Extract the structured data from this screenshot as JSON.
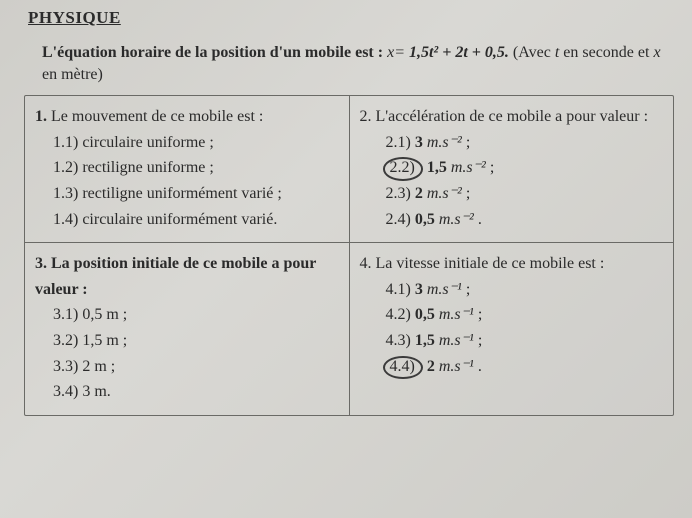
{
  "header": {
    "title": "PHYSIQUE"
  },
  "intro": {
    "lead": "L'équation horaire de la position d'un mobile est :",
    "eq_lhs": "x",
    "eq_rhs": "1,5t² + 2t + 0,5.",
    "note_open": "(Avec ",
    "note_var1": "t",
    "note_mid": " en seconde et ",
    "note_var2": "x",
    "note_end": " en mètre)"
  },
  "q1": {
    "num": "1.",
    "text": "Le mouvement de ce mobile est :",
    "opts": [
      {
        "n": "1.1)",
        "t": "circulaire uniforme ;"
      },
      {
        "n": "1.2)",
        "t": "rectiligne uniforme ;"
      },
      {
        "n": "1.3)",
        "t": "rectiligne uniformément varié ;"
      },
      {
        "n": "1.4)",
        "t": "circulaire uniformément varié."
      }
    ]
  },
  "q2": {
    "num": "2.",
    "text": "L'accélération de ce mobile a pour valeur :",
    "opts": [
      {
        "n": "2.1)",
        "v": "3",
        "u": "m.s⁻²",
        "p": ";"
      },
      {
        "n": "2.2)",
        "v": "1,5",
        "u": "m.s⁻²",
        "p": ";",
        "circled": true
      },
      {
        "n": "2.3)",
        "v": "2",
        "u": "m.s⁻²",
        "p": ";"
      },
      {
        "n": "2.4)",
        "v": "0,5",
        "u": "m.s⁻²",
        "p": "."
      }
    ]
  },
  "q3": {
    "num": "3.",
    "text": "La position initiale de ce mobile a pour valeur :",
    "opts": [
      {
        "n": "3.1)",
        "t": "0,5 m ;"
      },
      {
        "n": "3.2)",
        "t": "1,5 m ;"
      },
      {
        "n": "3.3)",
        "t": "2 m ;"
      },
      {
        "n": "3.4)",
        "t": "3 m."
      }
    ]
  },
  "q4": {
    "num": "4.",
    "text": "La vitesse initiale de ce mobile est :",
    "opts": [
      {
        "n": "4.1)",
        "v": "3",
        "u": "m.s⁻¹",
        "p": ";"
      },
      {
        "n": "4.2)",
        "v": "0,5",
        "u": "m.s⁻¹",
        "p": ";"
      },
      {
        "n": "4.3)",
        "v": "1,5",
        "u": "m.s⁻¹",
        "p": ";"
      },
      {
        "n": "4.4)",
        "v": "2",
        "u": "m.s⁻¹",
        "p": ".",
        "circled": true
      }
    ]
  }
}
